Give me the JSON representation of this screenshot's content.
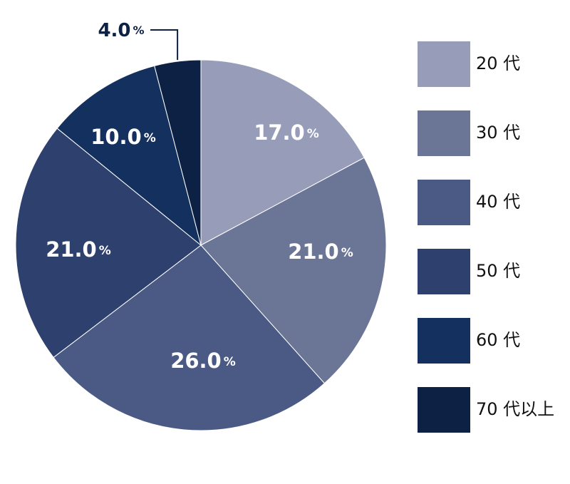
{
  "chart_data": {
    "type": "pie",
    "categories": [
      "20 代",
      "30 代",
      "40 代",
      "50 代",
      "60 代",
      "70 代以上"
    ],
    "values": [
      17.0,
      21.0,
      26.0,
      21.0,
      10.0,
      4.0
    ],
    "value_labels": [
      "17.0",
      "21.0",
      "26.0",
      "21.0",
      "10.0",
      "4.0"
    ],
    "unit": "%",
    "colors": [
      "#979db9",
      "#6b7596",
      "#4b5a85",
      "#2e416e",
      "#14305f",
      "#0d2144"
    ],
    "start": "top, clockwise",
    "legend_position": "right"
  }
}
